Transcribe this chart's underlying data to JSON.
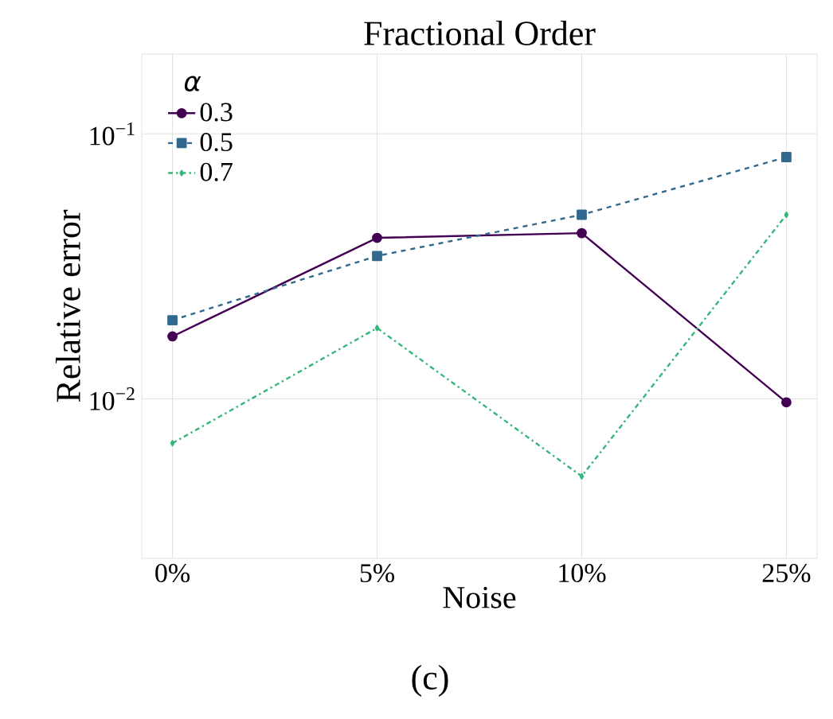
{
  "chart_data": {
    "type": "line",
    "title": "Fractional Order",
    "xlabel": "Noise",
    "ylabel": "Relative error",
    "legend_title": "α",
    "categories": [
      "0%",
      "5%",
      "10%",
      "25%"
    ],
    "series": [
      {
        "name": "0.3",
        "color": "#440154",
        "marker": "circle",
        "line_style": "solid",
        "values": [
          0.0172,
          0.0405,
          0.0422,
          0.0097
        ]
      },
      {
        "name": "0.5",
        "color": "#31688e",
        "marker": "square",
        "line_style": "dashed",
        "values": [
          0.0198,
          0.0346,
          0.0495,
          0.0817
        ]
      },
      {
        "name": "0.7",
        "color": "#35b779",
        "marker": "diamond",
        "line_style": "dashdot",
        "values": [
          0.0068,
          0.0185,
          0.0051,
          0.0495
        ]
      }
    ],
    "log": "y",
    "ylim": [
      0.0025,
      0.2
    ],
    "yticks": [
      {
        "value": 0.01,
        "label": "10$^{−2}$"
      },
      {
        "value": 0.1,
        "label": "10$^{−1}$"
      }
    ],
    "grid": true,
    "legend": "top left",
    "annotations": [
      "(c)"
    ]
  }
}
